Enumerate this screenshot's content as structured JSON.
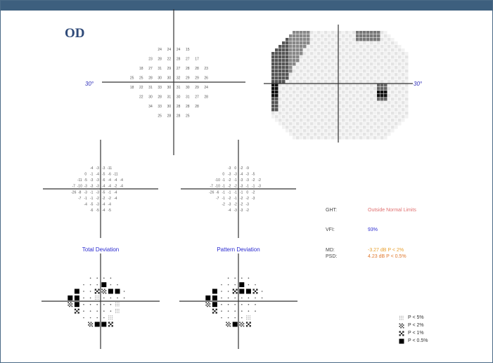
{
  "eye": "OD",
  "field_axis_label_left": "30°",
  "field_axis_label_right": "30°",
  "sensitivity_grid": [
    [
      null,
      null,
      null,
      "24",
      "24",
      "24",
      "15",
      null,
      null,
      null
    ],
    [
      null,
      null,
      "23",
      "28",
      "22",
      "28",
      "27",
      "17",
      null,
      null
    ],
    [
      null,
      "18",
      "27",
      "31",
      "29",
      "27",
      "28",
      "28",
      "23",
      null
    ],
    [
      "25",
      "25",
      "28",
      "30",
      "30",
      "32",
      "29",
      "29",
      "26",
      null
    ],
    [
      "18",
      "22",
      "31",
      "33",
      "30",
      "31",
      "30",
      "29",
      "24",
      null
    ],
    [
      null,
      "22",
      "30",
      "28",
      "31",
      "30",
      "31",
      "27",
      "28",
      null
    ],
    [
      null,
      null,
      "34",
      "33",
      "30",
      "28",
      "28",
      "28",
      null,
      null
    ],
    [
      null,
      null,
      null,
      "25",
      "28",
      "28",
      "25",
      null,
      null,
      null
    ]
  ],
  "total_deviation": {
    "title": "Total Deviation",
    "grid": [
      [
        null,
        null,
        null,
        "-4",
        "-3",
        "-3",
        "-11",
        null,
        null,
        null
      ],
      [
        null,
        null,
        "0",
        "-1",
        "-4",
        "-5",
        "-6",
        "-11",
        null,
        null
      ],
      [
        null,
        "-11",
        "-5",
        "-3",
        "-3",
        "-6",
        "-4",
        "-4",
        "-4",
        null
      ],
      [
        "-7",
        "-10",
        "-3",
        "-3",
        "-3",
        "-4",
        "-4",
        "-2",
        "-4",
        null
      ],
      [
        "-26",
        "-8",
        "-3",
        "-1",
        "-3",
        "-5",
        "-1",
        "-4",
        null,
        null
      ],
      [
        null,
        "-7",
        "-1",
        "-1",
        "-2",
        "-2",
        "-2",
        "-4",
        null,
        null
      ],
      [
        null,
        null,
        "-4",
        "-5",
        "-3",
        "-4",
        "-4",
        null,
        null,
        null
      ],
      [
        null,
        null,
        null,
        "-6",
        "-5",
        "-4",
        "-5",
        null,
        null,
        null
      ]
    ],
    "prob_grid": [
      [
        null,
        null,
        null,
        "n",
        "n",
        "n",
        "n",
        null,
        null,
        null
      ],
      [
        null,
        null,
        "n",
        "n",
        "n",
        "4",
        "n",
        "n",
        null,
        null
      ],
      [
        null,
        "4",
        "n",
        "n",
        "3",
        "2",
        "4",
        "4",
        "n",
        null
      ],
      [
        "4",
        "4",
        "n",
        "n",
        "1",
        "n",
        "n",
        "n",
        "n",
        null
      ],
      [
        "2",
        "4",
        "n",
        "n",
        "n",
        "n",
        "n",
        "1",
        null,
        null
      ],
      [
        null,
        "3",
        "n",
        "n",
        "n",
        "n",
        "n",
        "1",
        null,
        null
      ],
      [
        null,
        null,
        "n",
        "n",
        "n",
        "n",
        "1",
        null,
        null,
        null
      ],
      [
        null,
        null,
        null,
        "2",
        "4",
        "4",
        "3",
        null,
        null,
        null
      ]
    ]
  },
  "pattern_deviation": {
    "title": "Pattern Deviation",
    "grid": [
      [
        null,
        null,
        null,
        "-3",
        "0",
        "-2",
        "-9",
        null,
        null,
        null
      ],
      [
        null,
        null,
        "0",
        "-3",
        "-3",
        "-4",
        "-3",
        "-5",
        null,
        null
      ],
      [
        null,
        "-10",
        "-1",
        "-2",
        "-1",
        "-3",
        "-3",
        "-2",
        "-2",
        null
      ],
      [
        "-7",
        "-10",
        "-1",
        "-2",
        "-2",
        "-3",
        "-1",
        "-1",
        "-3",
        null
      ],
      [
        "-26",
        "-6",
        "-1",
        "-1",
        "-1",
        "-1",
        "0",
        "-2",
        null,
        null
      ],
      [
        null,
        "-7",
        "-1",
        "-2",
        "-1",
        "-2",
        "-2",
        "-3",
        null,
        null
      ],
      [
        null,
        null,
        "-2",
        "-3",
        "-2",
        "-2",
        "-3",
        null,
        null,
        null
      ],
      [
        null,
        null,
        null,
        "-4",
        "-3",
        "-3",
        "-2",
        null,
        null,
        null
      ]
    ],
    "prob_grid": [
      [
        null,
        null,
        null,
        "n",
        "n",
        "n",
        "n",
        null,
        null,
        null
      ],
      [
        null,
        null,
        "n",
        "n",
        "n",
        "4",
        "n",
        "n",
        null,
        null
      ],
      [
        null,
        "4",
        "n",
        "n",
        "3",
        "4",
        "4",
        "3",
        "n",
        null
      ],
      [
        "4",
        "4",
        "n",
        "n",
        "n",
        "n",
        "n",
        "n",
        "n",
        null
      ],
      [
        "2",
        "4",
        "n",
        "n",
        "n",
        "n",
        "n",
        "n",
        null,
        null
      ],
      [
        null,
        "3",
        "n",
        "n",
        "n",
        "n",
        "n",
        "n",
        null,
        null
      ],
      [
        null,
        null,
        "n",
        "n",
        "n",
        "n",
        "1",
        null,
        null,
        null
      ],
      [
        null,
        null,
        null,
        "2",
        "4",
        "2",
        "3",
        null,
        null,
        null
      ]
    ]
  },
  "indices": {
    "ght_label": "GHT:",
    "ght_value": "Outside Normal Limits",
    "vfi_label": "VFI:",
    "vfi_value": "93%",
    "md_label": "MD:",
    "md_value": "-3.27 dB P < 2%",
    "psd_label": "PSD:",
    "psd_value": "4.23 dB P < 0.5%"
  },
  "colors": {
    "ght_value": "#e07070",
    "vfi_value": "#2b2bd0",
    "md_value": "#e8a030",
    "psd_value": "#e07a30",
    "frame": "#3d5f7e"
  },
  "legend": [
    {
      "symbol": "p5",
      "label": "P < 5%"
    },
    {
      "symbol": "p2",
      "label": "P < 2%"
    },
    {
      "symbol": "p1",
      "label": "P < 1%"
    },
    {
      "symbol": "p05",
      "label": "P < 0.5%"
    }
  ]
}
